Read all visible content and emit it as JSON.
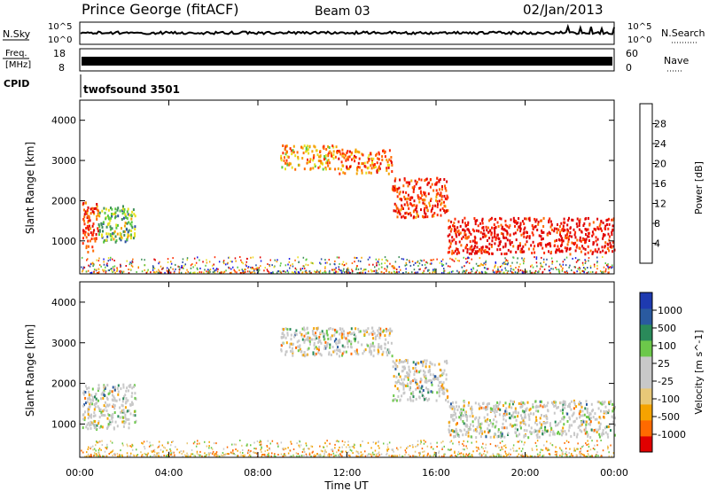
{
  "header": {
    "site": "Prince George (fitACF)",
    "beam": "Beam 03",
    "date": "02/Jan/2013"
  },
  "strips": {
    "nsky_label": "N.Sky",
    "nsky_ticks": [
      "10^5",
      "10^0"
    ],
    "nsearch_label": "N.Search",
    "nsearch_ticks": [
      "10^5",
      "10^0"
    ],
    "freq_label_1": "Freq.",
    "freq_label_2": "[MHz]",
    "freq_ticks": [
      "18",
      "8"
    ],
    "nave_label": "Nave",
    "nave_ticks": [
      "60",
      "0"
    ],
    "cpid_label": "CPID",
    "cpid_text": "twofsound 3501"
  },
  "colors": {
    "power": [
      "#1e1ee6",
      "#2a4fa0",
      "#3f8f5a",
      "#58c840",
      "#e8e020",
      "#f5a300",
      "#ff6a00",
      "#ff2a00",
      "#e00000"
    ],
    "velocity": [
      "#e00000",
      "#ff6a00",
      "#f5a300",
      "#e8c878",
      "#c8c8c8",
      "#c8c8c8",
      "#6cc84a",
      "#2a8a5a",
      "#2a5aa0",
      "#1e3ab0"
    ]
  },
  "chart_data": [
    {
      "type": "heatmap",
      "name": "power",
      "title": "",
      "xlabel": "Time UT",
      "ylabel": "Slant Range [km]",
      "xlim": [
        0,
        24
      ],
      "ylim": [
        180,
        4500
      ],
      "x_ticks": [
        "00:00",
        "04:00",
        "08:00",
        "12:00",
        "16:00",
        "20:00",
        "00:00"
      ],
      "y_ticks": [
        "1000",
        "2000",
        "3000",
        "4000"
      ],
      "colorbar_label": "Power [dB]",
      "colorbar_ticks": [
        "4",
        "8",
        "12",
        "16",
        "20",
        "24",
        "28"
      ],
      "regions": [
        {
          "t0": 0.1,
          "t1": 0.8,
          "r0": 750,
          "r1": 2000,
          "level": 24
        },
        {
          "t0": 0.8,
          "t1": 2.5,
          "r0": 1000,
          "r1": 1900,
          "level": 12
        },
        {
          "t0": 9.0,
          "t1": 11.5,
          "r0": 2800,
          "r1": 3400,
          "level": 16
        },
        {
          "t0": 11.5,
          "t1": 14.0,
          "r0": 2700,
          "r1": 3300,
          "level": 20
        },
        {
          "t0": 14.0,
          "t1": 16.5,
          "r0": 1600,
          "r1": 2600,
          "level": 24
        },
        {
          "t0": 16.5,
          "t1": 24.0,
          "r0": 700,
          "r1": 1600,
          "level": 28
        }
      ]
    },
    {
      "type": "heatmap",
      "name": "velocity",
      "title": "",
      "xlabel": "Time UT",
      "ylabel": "Slant Range [km]",
      "xlim": [
        0,
        24
      ],
      "ylim": [
        180,
        4500
      ],
      "x_ticks": [
        "00:00",
        "04:00",
        "08:00",
        "12:00",
        "16:00",
        "20:00",
        "00:00"
      ],
      "y_ticks": [
        "1000",
        "2000",
        "3000",
        "4000"
      ],
      "colorbar_label": "Velocity [m s^-1]",
      "colorbar_ticks": [
        "1000",
        "500",
        "100",
        "25",
        "-25",
        "-100",
        "-500",
        "-1000"
      ],
      "regions": [
        {
          "t0": 0.1,
          "t1": 2.5,
          "r0": 900,
          "r1": 2000,
          "level": 0
        },
        {
          "t0": 9.0,
          "t1": 14.0,
          "r0": 2700,
          "r1": 3400,
          "level": 0
        },
        {
          "t0": 14.0,
          "t1": 16.5,
          "r0": 1600,
          "r1": 2600,
          "level": 0
        },
        {
          "t0": 16.5,
          "t1": 24.0,
          "r0": 700,
          "r1": 1600,
          "level": 0
        }
      ]
    }
  ]
}
